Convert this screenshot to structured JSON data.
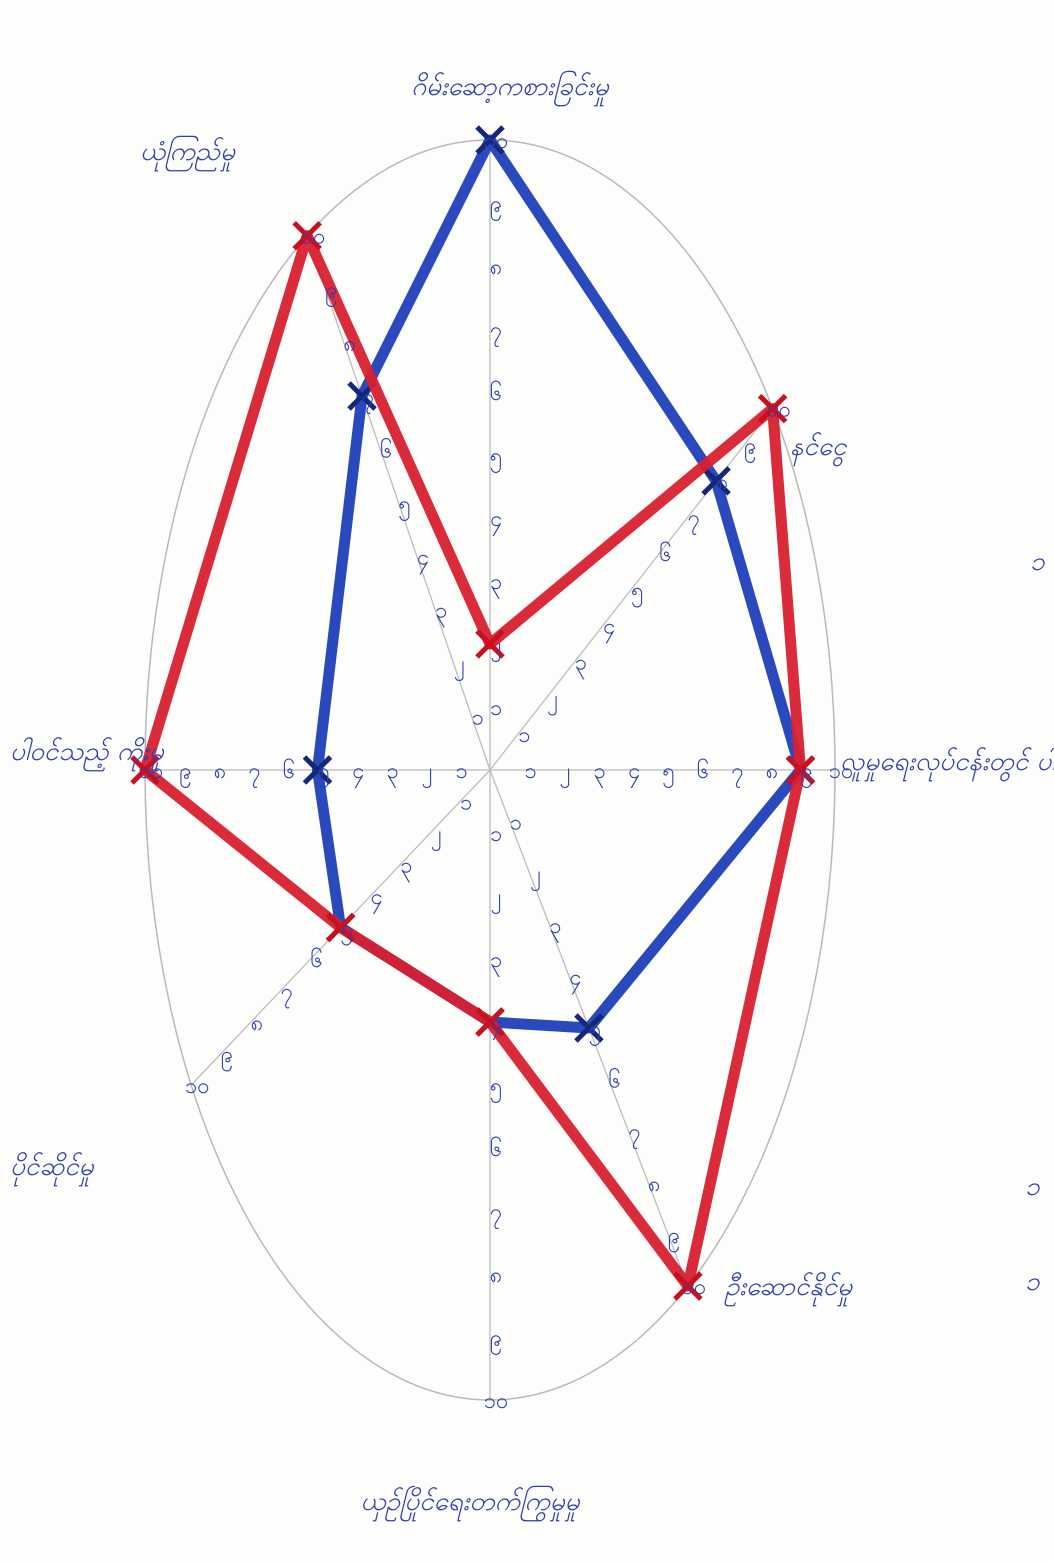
{
  "chart_data": {
    "type": "radar",
    "title": "",
    "rmax": 10,
    "ticks": [
      "၁",
      "၂",
      "၃",
      "၄",
      "၅",
      "၆",
      "၇",
      "၈",
      "၉",
      "၁၀"
    ],
    "categories": [
      "ဂိမ်းဆော့ကစားခြင်းမှု",
      "နင်ငွေ",
      "လူမှုရေးလုပ်ငန်းတွင် ပါဝင်မှု",
      "ဦးဆောင်နိုင်မှု",
      "ယှဉ်ပြိုင်ရေးတက်ကြွမှုမှု",
      "ပိုင်ဆိုင်မှု",
      "ပါဝင်သည့် ကိုးမှု",
      "ယုံကြည်မှု"
    ],
    "series": [
      {
        "name": "",
        "color": "#1f3fb8",
        "values": [
          10,
          8,
          9,
          5,
          4,
          5,
          5,
          7
        ]
      },
      {
        "name": "",
        "color": "#d8202f",
        "values": [
          2,
          10,
          9,
          10,
          4,
          5,
          10,
          10
        ]
      }
    ],
    "grid": "axes",
    "legend": "none"
  },
  "margin_notes": {
    "left_bottom": "ပိုင်ဆိုင်မှု",
    "right_mid": "၁",
    "right_bottom_1": "၁",
    "right_bottom_2": "၁"
  }
}
